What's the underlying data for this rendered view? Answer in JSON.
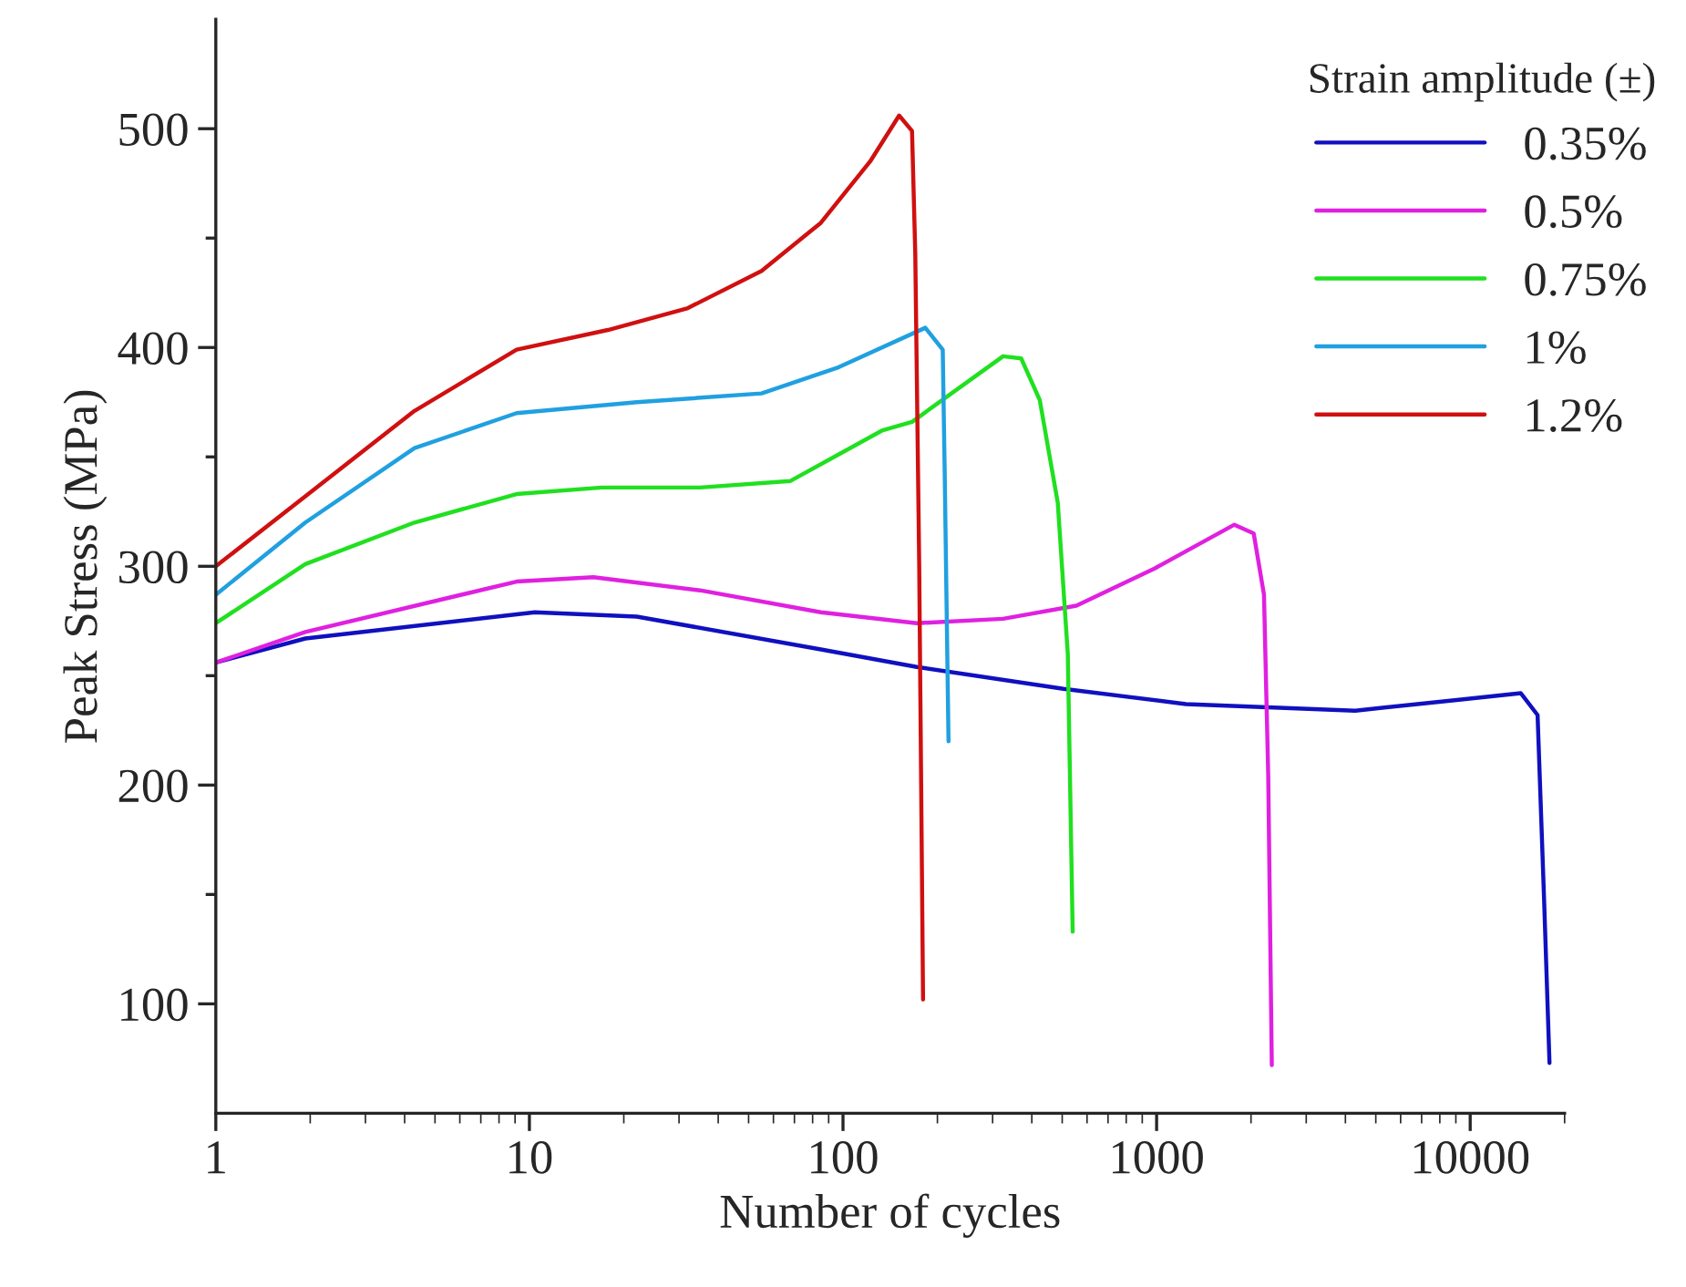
{
  "chart_data": {
    "type": "line",
    "xlabel": "Number of cycles",
    "ylabel": "Peak Stress (MPa)",
    "legend_title": "Strain amplitude (±)",
    "legend": "top right",
    "log": "x",
    "grid": false,
    "marker": "none",
    "line_style": "solid",
    "xlim": [
      1,
      20000
    ],
    "xticks": [
      1,
      10,
      100,
      1000,
      10000
    ],
    "ylim": [
      50,
      550
    ],
    "yticks": [
      100,
      {
        "value": 150,
        "label": null
      },
      200,
      {
        "value": 250,
        "label": null
      },
      300,
      {
        "value": 350,
        "label": null
      },
      400,
      {
        "value": 450,
        "label": null
      },
      500
    ],
    "series": [
      {
        "name": "0.35%",
        "color": "#1010c0",
        "x": [
          1,
          1.93,
          10.4,
          22,
          85,
          172,
          505,
          1240,
          4300,
          9200,
          14500,
          16400,
          17200,
          17900
        ],
        "values": [
          256,
          267,
          279,
          277,
          262,
          254,
          244,
          237,
          234,
          239,
          242,
          232,
          148,
          73
        ]
      },
      {
        "name": "0.5%",
        "color": "#e020e0",
        "x": [
          1,
          1.93,
          9.1,
          16,
          35,
          85,
          172,
          324,
          555,
          985,
          1770,
          2040,
          2200,
          2270,
          2330
        ],
        "values": [
          256,
          270,
          293,
          295,
          289,
          279,
          274,
          276,
          282,
          299,
          319,
          315,
          287,
          204,
          72
        ]
      },
      {
        "name": "0.75%",
        "color": "#20e020",
        "x": [
          1,
          1.93,
          4.3,
          9.1,
          17,
          35,
          68,
          133,
          166,
          324,
          370,
          424,
          484,
          521,
          540
        ],
        "values": [
          274,
          301,
          320,
          333,
          336,
          336,
          339,
          362,
          366,
          396,
          395,
          376,
          329,
          260,
          133
        ]
      },
      {
        "name": "1%",
        "color": "#20a0e0",
        "x": [
          1,
          1.93,
          4.3,
          9.1,
          22,
          55,
          97,
          183,
          208,
          211,
          217
        ],
        "values": [
          287,
          320,
          354,
          370,
          375,
          379,
          391,
          409,
          399,
          343,
          220
        ]
      },
      {
        "name": "1.2%",
        "color": "#d01010",
        "x": [
          1,
          1.93,
          4.3,
          9.1,
          17.8,
          32,
          55,
          85,
          122,
          151,
          166,
          170,
          175,
          180
        ],
        "values": [
          300,
          332,
          371,
          399,
          408,
          418,
          435,
          457,
          485,
          506,
          499,
          443,
          300,
          102
        ]
      }
    ]
  }
}
